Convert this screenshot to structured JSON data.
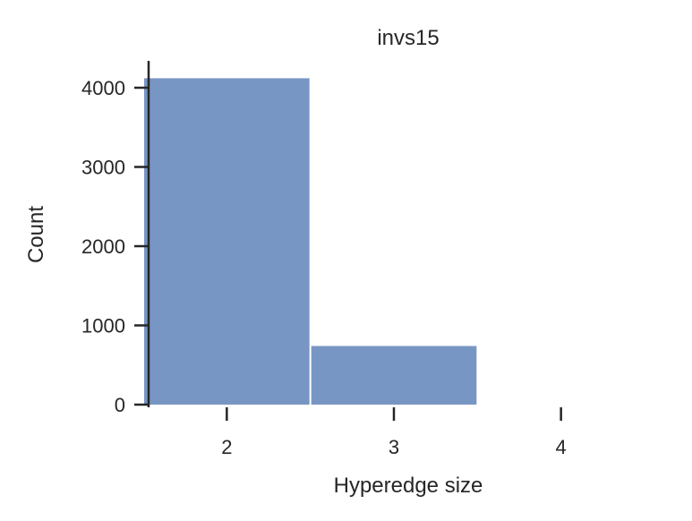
{
  "chart_data": {
    "type": "bar",
    "title": "invs15",
    "xlabel": "Hyperedge size",
    "ylabel": "Count",
    "categories": [
      "2",
      "3",
      "4"
    ],
    "values": [
      4120,
      740,
      0
    ],
    "ylim": [
      0,
      4300
    ],
    "xlim": [
      1.5,
      4.5
    ],
    "yticks": [
      "0",
      "1000",
      "2000",
      "3000",
      "4000"
    ],
    "xticks": [
      "2",
      "3",
      "4"
    ],
    "grid": false,
    "bar_color": "#7896c4",
    "axis_color": "#262626"
  }
}
